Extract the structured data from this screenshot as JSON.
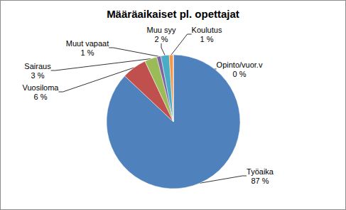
{
  "chart_data": {
    "type": "pie",
    "title": "Määräaikaiset pl. opettajat",
    "categories": [
      "Työaika",
      "Vuosiloma",
      "Sairaus",
      "Muut vapaat",
      "Muu syy",
      "Koulutus",
      "Opinto/vuor.v"
    ],
    "values": [
      87,
      6,
      3,
      1,
      2,
      1,
      0
    ],
    "value_labels": [
      "87 %",
      "6 %",
      "3 %",
      "1 %",
      "2 %",
      "1 %",
      "0 %"
    ],
    "colors": [
      "#4f81bd",
      "#c0504d",
      "#9bbb59",
      "#8064a2",
      "#4bacc6",
      "#f79646",
      "#2c4d75"
    ],
    "data_labels": true
  }
}
